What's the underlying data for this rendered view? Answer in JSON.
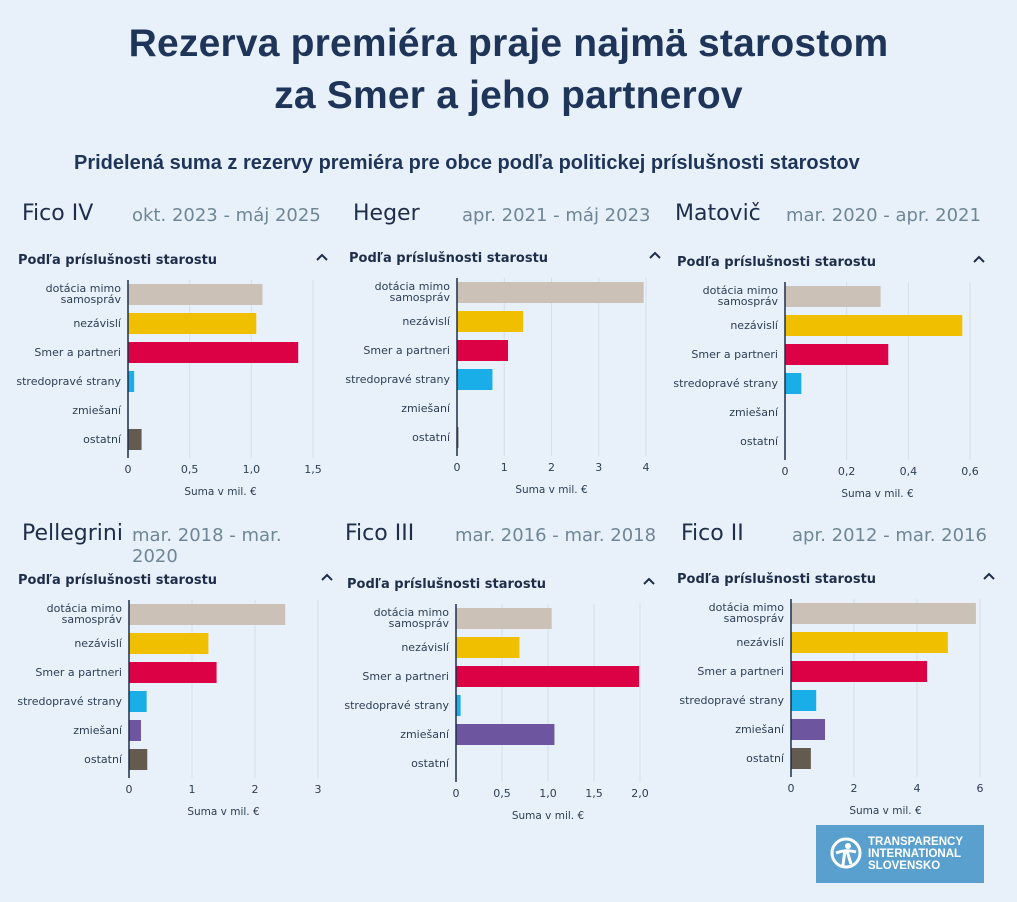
{
  "header": {
    "title_line1": "Rezerva premiéra praje najmä starostom",
    "title_line2": "za Smer a jeho partnerov",
    "subtitle": "Pridelená suma z rezervy premiéra pre obce podľa politickej príslušnosti starostov"
  },
  "colors": {
    "background": "#e8f1f9",
    "title": "#1e3559",
    "dotacia": "#ccc1b7",
    "nezavisli": "#f0c000",
    "smer": "#dc0045",
    "stredopraves": "#1aaee8",
    "zmiesani": "#6e55a0",
    "ostatni": "#635a50"
  },
  "section_label": "Podľa príslušnosti starostu",
  "caret_icon": "chevron-up-icon",
  "logo": {
    "line1": "TRANSPARENCY",
    "line2": "INTERNATIONAL",
    "line3": "SLOVENSKO",
    "icon": "transparency-international-logo-icon"
  },
  "chart_data": [
    {
      "type": "bar",
      "orientation": "horizontal",
      "government": "Fico IV",
      "period": "okt. 2023 - máj 2025",
      "title": "Podľa príslušnosti starostu",
      "xlabel": "Suma v mil. €",
      "categories": [
        "dotácia mimo samospráv",
        "nezávislí",
        "Smer a partneri",
        "stredopravé strany",
        "zmiešaní",
        "ostatní"
      ],
      "values": [
        1.09,
        1.04,
        1.38,
        0.05,
        0.0,
        0.11
      ],
      "xlim": [
        0,
        1.5
      ],
      "ticks": [
        0,
        0.5,
        1.0,
        1.5
      ],
      "tick_labels": [
        "0",
        "0,5",
        "1,0",
        "1,5"
      ],
      "grid": true
    },
    {
      "type": "bar",
      "orientation": "horizontal",
      "government": "Heger",
      "period": "apr. 2021 - máj 2023",
      "title": "Podľa príslušnosti starostu",
      "xlabel": "Suma v mil. €",
      "categories": [
        "dotácia mimo samospráv",
        "nezávislí",
        "Smer a partneri",
        "stredopravé strany",
        "zmiešaní",
        "ostatní"
      ],
      "values": [
        3.95,
        1.4,
        1.08,
        0.75,
        0.0,
        0.03
      ],
      "xlim": [
        0,
        4
      ],
      "ticks": [
        0,
        1,
        2,
        3,
        4
      ],
      "tick_labels": [
        "0",
        "1",
        "2",
        "3",
        "4"
      ],
      "grid": true
    },
    {
      "type": "bar",
      "orientation": "horizontal",
      "government": "Matovič",
      "period": "mar. 2020 - apr. 2021",
      "title": "Podľa príslušnosti starostu",
      "xlabel": "Suma v mil. €",
      "categories": [
        "dotácia mimo samospráv",
        "nezávislí",
        "Smer a partneri",
        "stredopravé strany",
        "zmiešaní",
        "ostatní"
      ],
      "values": [
        0.31,
        0.575,
        0.335,
        0.053,
        0.0,
        0.0
      ],
      "xlim": [
        0,
        0.6
      ],
      "ticks": [
        0,
        0.2,
        0.4,
        0.6
      ],
      "tick_labels": [
        "0",
        "0,2",
        "0,4",
        "0,6"
      ],
      "grid": true
    },
    {
      "type": "bar",
      "orientation": "horizontal",
      "government": "Pellegrini",
      "period": "mar. 2018 - mar. 2020",
      "title": "Podľa príslušnosti starostu",
      "xlabel": "Suma v mil. €",
      "categories": [
        "dotácia mimo samospráv",
        "nezávislí",
        "Smer a partneri",
        "stredopravé strany",
        "zmiešaní",
        "ostatní"
      ],
      "values": [
        2.48,
        1.26,
        1.39,
        0.28,
        0.19,
        0.29
      ],
      "xlim": [
        0,
        3
      ],
      "ticks": [
        0,
        1,
        2,
        3
      ],
      "tick_labels": [
        "0",
        "1",
        "2",
        "3"
      ],
      "grid": true
    },
    {
      "type": "bar",
      "orientation": "horizontal",
      "government": "Fico III",
      "period": "mar. 2016 - mar. 2018",
      "title": "Podľa príslušnosti starostu",
      "xlabel": "Suma v mil. €",
      "categories": [
        "dotácia mimo samospráv",
        "nezávislí",
        "Smer a partneri",
        "stredopravé strany",
        "zmiešaní",
        "ostatní"
      ],
      "values": [
        1.04,
        0.69,
        1.99,
        0.05,
        1.07,
        0.0
      ],
      "xlim": [
        0,
        2.0
      ],
      "ticks": [
        0,
        0.5,
        1.0,
        1.5,
        2.0
      ],
      "tick_labels": [
        "0",
        "0,5",
        "1,0",
        "1,5",
        "2,0"
      ],
      "grid": true
    },
    {
      "type": "bar",
      "orientation": "horizontal",
      "government": "Fico II",
      "period": "apr. 2012 - mar. 2016",
      "title": "Podľa príslušnosti starostu",
      "xlabel": "Suma v mil. €",
      "categories": [
        "dotácia mimo samospráv",
        "nezávislí",
        "Smer a partneri",
        "stredopravé strany",
        "zmiešaní",
        "ostatní"
      ],
      "values": [
        5.87,
        4.98,
        4.32,
        0.8,
        1.08,
        0.63
      ],
      "xlim": [
        0,
        6
      ],
      "ticks": [
        0,
        2,
        4,
        6
      ],
      "tick_labels": [
        "0",
        "2",
        "4",
        "6"
      ],
      "grid": true
    }
  ]
}
